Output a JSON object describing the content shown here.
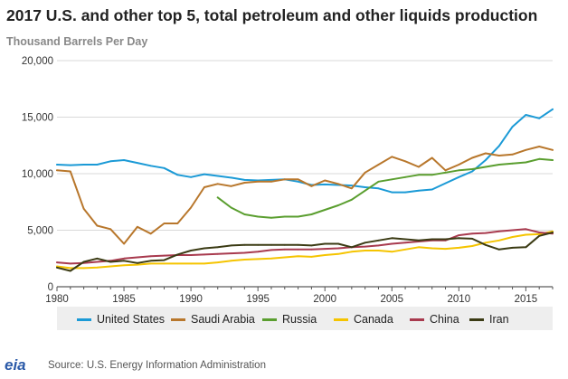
{
  "chart_data": {
    "type": "line",
    "title": "2017 U.S. and other top 5, total petroleum and other liquids production",
    "ylabel": "Thousand Barrels Per Day",
    "xlabel": "",
    "xlim": [
      1980,
      2017
    ],
    "ylim": [
      0,
      20000
    ],
    "x_ticks": [
      1980,
      1985,
      1990,
      1995,
      2000,
      2005,
      2010,
      2015
    ],
    "y_ticks": [
      0,
      5000,
      10000,
      15000,
      20000
    ],
    "y_tick_labels": [
      "0",
      "5,000",
      "10,000",
      "15,000",
      "20,000"
    ],
    "grid": true,
    "legend_position": "bottom",
    "series": [
      {
        "name": "United States",
        "color": "#1b9ad6",
        "x": [
          1980,
          1981,
          1982,
          1983,
          1984,
          1985,
          1986,
          1987,
          1988,
          1989,
          1990,
          1991,
          1992,
          1993,
          1994,
          1995,
          1996,
          1997,
          1998,
          1999,
          2000,
          2001,
          2002,
          2003,
          2004,
          2005,
          2006,
          2007,
          2008,
          2009,
          2010,
          2011,
          2012,
          2013,
          2014,
          2015,
          2016,
          2017
        ],
        "values": [
          10800,
          10750,
          10800,
          10800,
          11100,
          11200,
          10950,
          10700,
          10500,
          9900,
          9700,
          9950,
          9800,
          9650,
          9450,
          9400,
          9450,
          9500,
          9300,
          9000,
          9050,
          9000,
          8950,
          8800,
          8700,
          8350,
          8350,
          8500,
          8600,
          9150,
          9700,
          10200,
          11200,
          12450,
          14150,
          15200,
          14900,
          15700
        ]
      },
      {
        "name": "Saudi Arabia",
        "color": "#b8772c",
        "x": [
          1980,
          1981,
          1982,
          1983,
          1984,
          1985,
          1986,
          1987,
          1988,
          1989,
          1990,
          1991,
          1992,
          1993,
          1994,
          1995,
          1996,
          1997,
          1998,
          1999,
          2000,
          2001,
          2002,
          2003,
          2004,
          2005,
          2006,
          2007,
          2008,
          2009,
          2010,
          2011,
          2012,
          2013,
          2014,
          2015,
          2016,
          2017
        ],
        "values": [
          10300,
          10200,
          6900,
          5400,
          5100,
          3800,
          5300,
          4700,
          5600,
          5600,
          7000,
          8800,
          9100,
          8900,
          9200,
          9300,
          9300,
          9500,
          9500,
          8900,
          9400,
          9100,
          8700,
          10100,
          10800,
          11500,
          11100,
          10600,
          11400,
          10300,
          10800,
          11400,
          11800,
          11600,
          11700,
          12100,
          12400,
          12100
        ]
      },
      {
        "name": "Russia",
        "color": "#5a9e2f",
        "x": [
          1992,
          1993,
          1994,
          1995,
          1996,
          1997,
          1998,
          1999,
          2000,
          2001,
          2002,
          2003,
          2004,
          2005,
          2006,
          2007,
          2008,
          2009,
          2010,
          2011,
          2012,
          2013,
          2014,
          2015,
          2016,
          2017
        ],
        "values": [
          7900,
          7000,
          6400,
          6200,
          6100,
          6200,
          6200,
          6400,
          6800,
          7200,
          7700,
          8500,
          9300,
          9500,
          9700,
          9900,
          9900,
          10100,
          10300,
          10400,
          10600,
          10800,
          10900,
          11000,
          11300,
          11200
        ]
      },
      {
        "name": "Canada",
        "color": "#f5c400",
        "x": [
          1980,
          1981,
          1982,
          1983,
          1984,
          1985,
          1986,
          1987,
          1988,
          1989,
          1990,
          1991,
          1992,
          1993,
          1994,
          1995,
          1996,
          1997,
          1998,
          1999,
          2000,
          2001,
          2002,
          2003,
          2004,
          2005,
          2006,
          2007,
          2008,
          2009,
          2010,
          2011,
          2012,
          2013,
          2014,
          2015,
          2016,
          2017
        ],
        "values": [
          1800,
          1650,
          1650,
          1700,
          1800,
          1900,
          1950,
          2050,
          2050,
          2050,
          2050,
          2050,
          2150,
          2300,
          2400,
          2450,
          2500,
          2600,
          2700,
          2650,
          2800,
          2900,
          3100,
          3200,
          3200,
          3100,
          3300,
          3500,
          3400,
          3350,
          3450,
          3600,
          3900,
          4100,
          4400,
          4600,
          4650,
          4900
        ]
      },
      {
        "name": "China",
        "color": "#a83a4e",
        "x": [
          1980,
          1981,
          1982,
          1983,
          1984,
          1985,
          1986,
          1987,
          1988,
          1989,
          1990,
          1991,
          1992,
          1993,
          1994,
          1995,
          1996,
          1997,
          1998,
          1999,
          2000,
          2001,
          2002,
          2003,
          2004,
          2005,
          2006,
          2007,
          2008,
          2009,
          2010,
          2011,
          2012,
          2013,
          2014,
          2015,
          2016,
          2017
        ],
        "values": [
          2150,
          2050,
          2100,
          2200,
          2300,
          2500,
          2600,
          2700,
          2750,
          2800,
          2800,
          2850,
          2900,
          2950,
          3000,
          3100,
          3250,
          3300,
          3300,
          3300,
          3350,
          3400,
          3500,
          3550,
          3650,
          3800,
          3900,
          4000,
          4100,
          4100,
          4550,
          4700,
          4750,
          4900,
          5000,
          5100,
          4800,
          4700
        ]
      },
      {
        "name": "Iran",
        "color": "#3b3b14",
        "x": [
          1980,
          1981,
          1982,
          1983,
          1984,
          1985,
          1986,
          1987,
          1988,
          1989,
          1990,
          1991,
          1992,
          1993,
          1994,
          1995,
          1996,
          1997,
          1998,
          1999,
          2000,
          2001,
          2002,
          2003,
          2004,
          2005,
          2006,
          2007,
          2008,
          2009,
          2010,
          2011,
          2012,
          2013,
          2014,
          2015,
          2016,
          2017
        ],
        "values": [
          1700,
          1400,
          2200,
          2500,
          2200,
          2300,
          2100,
          2300,
          2350,
          2850,
          3200,
          3400,
          3500,
          3650,
          3700,
          3700,
          3700,
          3700,
          3700,
          3650,
          3800,
          3800,
          3500,
          3900,
          4100,
          4300,
          4200,
          4100,
          4200,
          4200,
          4300,
          4250,
          3700,
          3300,
          3450,
          3500,
          4500,
          4800
        ]
      }
    ]
  },
  "footer": {
    "logo_text": "eia",
    "source": "Source: U.S. Energy Information Administration"
  }
}
